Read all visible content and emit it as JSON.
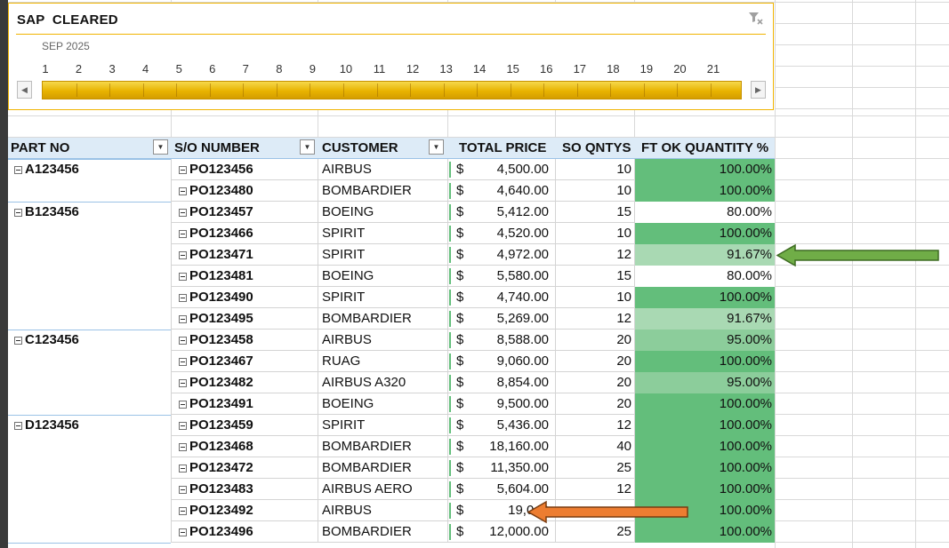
{
  "timeline": {
    "title": "SAP  CLEARED",
    "period": "SEP 2025",
    "days": [
      "1",
      "2",
      "3",
      "4",
      "5",
      "6",
      "7",
      "8",
      "9",
      "10",
      "11",
      "12",
      "13",
      "14",
      "15",
      "16",
      "17",
      "18",
      "19",
      "20",
      "21"
    ],
    "scroll_left": "◀",
    "scroll_right": "▶",
    "clear_filter_icon": "filter-clear-icon"
  },
  "pivot": {
    "headers": {
      "part_no": "PART NO",
      "so_number": "S/O NUMBER",
      "customer": "CUSTOMER",
      "total_price": "TOTAL PRICE",
      "so_qntys": "SO QNTYS",
      "ft_ok": "FT OK QUANTITY %"
    },
    "filter_icon": "▼",
    "currency": "$",
    "rows": [
      {
        "part": "A123456",
        "so": "PO123456",
        "customer": "AIRBUS",
        "price": "4,500.00",
        "qty": "10",
        "pct": "100.00%",
        "fill": "#63be7b"
      },
      {
        "part": "",
        "so": "PO123480",
        "customer": "BOMBARDIER",
        "price": "4,640.00",
        "qty": "10",
        "pct": "100.00%",
        "fill": "#63be7b"
      },
      {
        "part": "B123456",
        "so": "PO123457",
        "customer": "BOEING",
        "price": "5,412.00",
        "qty": "15",
        "pct": "80.00%",
        "fill": "#ffffff"
      },
      {
        "part": "",
        "so": "PO123466",
        "customer": "SPIRIT",
        "price": "4,520.00",
        "qty": "10",
        "pct": "100.00%",
        "fill": "#63be7b"
      },
      {
        "part": "",
        "so": "PO123471",
        "customer": "SPIRIT",
        "price": "4,972.00",
        "qty": "12",
        "pct": "91.67%",
        "fill": "#a9d9b3"
      },
      {
        "part": "",
        "so": "PO123481",
        "customer": "BOEING",
        "price": "5,580.00",
        "qty": "15",
        "pct": "80.00%",
        "fill": "#ffffff"
      },
      {
        "part": "",
        "so": "PO123490",
        "customer": "SPIRIT",
        "price": "4,740.00",
        "qty": "10",
        "pct": "100.00%",
        "fill": "#63be7b"
      },
      {
        "part": "",
        "so": "PO123495",
        "customer": "BOMBARDIER",
        "price": "5,269.00",
        "qty": "12",
        "pct": "91.67%",
        "fill": "#a9d9b3"
      },
      {
        "part": "C123456",
        "so": "PO123458",
        "customer": "AIRBUS",
        "price": "8,588.00",
        "qty": "20",
        "pct": "95.00%",
        "fill": "#8ccd9b"
      },
      {
        "part": "",
        "so": "PO123467",
        "customer": "RUAG",
        "price": "9,060.00",
        "qty": "20",
        "pct": "100.00%",
        "fill": "#63be7b"
      },
      {
        "part": "",
        "so": "PO123482",
        "customer": "AIRBUS A320",
        "price": "8,854.00",
        "qty": "20",
        "pct": "95.00%",
        "fill": "#8ccd9b"
      },
      {
        "part": "",
        "so": "PO123491",
        "customer": "BOEING",
        "price": "9,500.00",
        "qty": "20",
        "pct": "100.00%",
        "fill": "#63be7b"
      },
      {
        "part": "D123456",
        "so": "PO123459",
        "customer": "SPIRIT",
        "price": "5,436.00",
        "qty": "12",
        "pct": "100.00%",
        "fill": "#63be7b"
      },
      {
        "part": "",
        "so": "PO123468",
        "customer": "BOMBARDIER",
        "price": "18,160.00",
        "qty": "40",
        "pct": "100.00%",
        "fill": "#63be7b"
      },
      {
        "part": "",
        "so": "PO123472",
        "customer": "BOMBARDIER",
        "price": "11,350.00",
        "qty": "25",
        "pct": "100.00%",
        "fill": "#63be7b"
      },
      {
        "part": "",
        "so": "PO123483",
        "customer": "AIRBUS AERO",
        "price": "5,604.00",
        "qty": "12",
        "pct": "100.00%",
        "fill": "#63be7b"
      },
      {
        "part": "",
        "so": "PO123492",
        "customer": "AIRBUS",
        "price": "19,040",
        "qty": "",
        "pct": "100.00%",
        "fill": "#63be7b"
      },
      {
        "part": "",
        "so": "PO123496",
        "customer": "BOMBARDIER",
        "price": "12,000.00",
        "qty": "25",
        "pct": "100.00%",
        "fill": "#63be7b"
      }
    ]
  },
  "annotations": {
    "green_arrow_color": "#70ad47",
    "orange_arrow_color": "#ed7d31"
  }
}
